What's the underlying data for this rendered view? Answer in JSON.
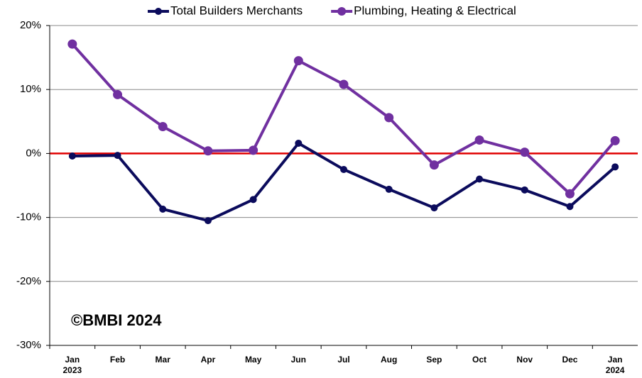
{
  "chart_data": {
    "type": "line",
    "categories": [
      "Jan 2023",
      "Feb",
      "Mar",
      "Apr",
      "May",
      "Jun",
      "Jul",
      "Aug",
      "Sep",
      "Oct",
      "Nov",
      "Dec",
      "Jan 2024"
    ],
    "series": [
      {
        "name": "Total Builders Merchants",
        "color": "#0b0b5c",
        "values": [
          -0.4,
          -0.3,
          -8.7,
          -10.5,
          -7.2,
          1.6,
          -2.5,
          -5.6,
          -8.5,
          -4.0,
          -5.7,
          -8.3,
          -2.1
        ]
      },
      {
        "name": "Plumbing, Heating & Electrical",
        "color": "#7030a0",
        "values": [
          17.1,
          9.2,
          4.2,
          0.4,
          0.5,
          14.5,
          10.8,
          5.6,
          -1.8,
          2.1,
          0.2,
          -6.3,
          2.0
        ]
      }
    ],
    "ylim": [
      -30,
      20
    ],
    "yticks": [
      {
        "value": -30,
        "label": "-30%"
      },
      {
        "value": -20,
        "label": "-20%"
      },
      {
        "value": -10,
        "label": "-10%"
      },
      {
        "value": 0,
        "label": "0%"
      },
      {
        "value": 10,
        "label": "10%"
      },
      {
        "value": 20,
        "label": "20%"
      }
    ],
    "grid": true,
    "zero_line_color": "#e00000",
    "legend": "top",
    "annotation": "©BMBI 2024"
  }
}
